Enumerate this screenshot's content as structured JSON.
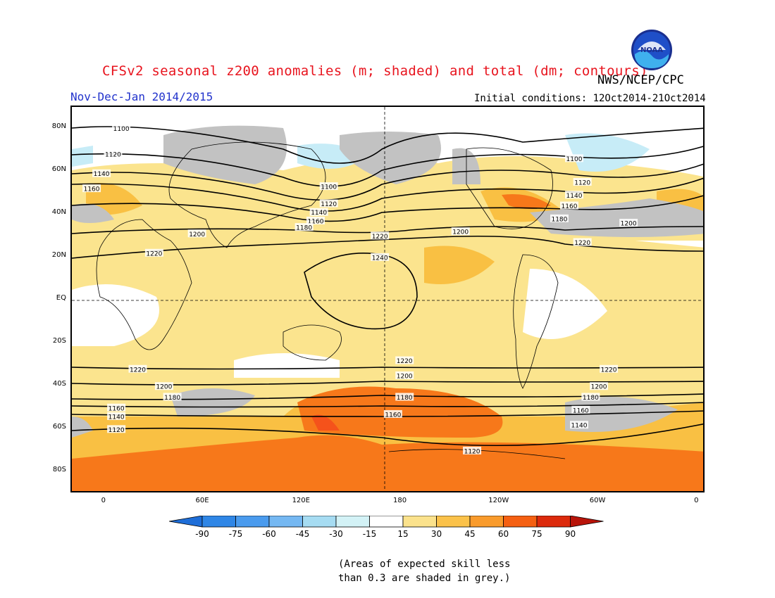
{
  "header": {
    "title": "CFSv2 seasonal z200 anomalies (m; shaded) and total (dm; contours)",
    "agency": "NWS/NCEP/CPC",
    "season": "Nov-Dec-Jan 2014/2015",
    "initial_conditions": "Initial conditions: 12Oct2014-21Oct2014",
    "logo_text": "NOAA"
  },
  "map": {
    "lat_labels": [
      "80N",
      "60N",
      "40N",
      "20N",
      "EQ",
      "20S",
      "40S",
      "60S",
      "80S"
    ],
    "lon_labels": [
      "0",
      "60E",
      "120E",
      "180",
      "120W",
      "60W",
      "0"
    ],
    "lat_values": [
      80,
      60,
      40,
      20,
      0,
      -20,
      -40,
      -60,
      -80
    ],
    "lon_values": [
      0,
      60,
      120,
      180,
      240,
      300,
      360
    ],
    "lon_range": [
      -20,
      365
    ],
    "lat_range": [
      90,
      -90
    ],
    "contour_labels": [
      {
        "text": "1100",
        "lon": 10,
        "lat": 80
      },
      {
        "text": "1120",
        "lon": 5,
        "lat": 68
      },
      {
        "text": "1140",
        "lon": -2,
        "lat": 59
      },
      {
        "text": "1160",
        "lon": -8,
        "lat": 52
      },
      {
        "text": "1200",
        "lon": 56,
        "lat": 31
      },
      {
        "text": "1220",
        "lon": 30,
        "lat": 22
      },
      {
        "text": "1100",
        "lon": 136,
        "lat": 53
      },
      {
        "text": "1120",
        "lon": 136,
        "lat": 45
      },
      {
        "text": "1140",
        "lon": 130,
        "lat": 41
      },
      {
        "text": "1160",
        "lon": 128,
        "lat": 37
      },
      {
        "text": "1180",
        "lon": 121,
        "lat": 34
      },
      {
        "text": "1220",
        "lon": 167,
        "lat": 30
      },
      {
        "text": "1240",
        "lon": 167,
        "lat": 20
      },
      {
        "text": "1200",
        "lon": 216,
        "lat": 32
      },
      {
        "text": "1100",
        "lon": 285,
        "lat": 66
      },
      {
        "text": "1120",
        "lon": 290,
        "lat": 55
      },
      {
        "text": "1140",
        "lon": 285,
        "lat": 49
      },
      {
        "text": "1160",
        "lon": 282,
        "lat": 44
      },
      {
        "text": "1180",
        "lon": 276,
        "lat": 38
      },
      {
        "text": "1220",
        "lon": 290,
        "lat": 27
      },
      {
        "text": "1200",
        "lon": 318,
        "lat": 36
      },
      {
        "text": "1220",
        "lon": 182,
        "lat": -28
      },
      {
        "text": "1200",
        "lon": 182,
        "lat": -35
      },
      {
        "text": "1180",
        "lon": 182,
        "lat": -45
      },
      {
        "text": "1160",
        "lon": 175,
        "lat": -53
      },
      {
        "text": "1120",
        "lon": 223,
        "lat": -70
      },
      {
        "text": "1220",
        "lon": 20,
        "lat": -32
      },
      {
        "text": "1200",
        "lon": 36,
        "lat": -40
      },
      {
        "text": "1180",
        "lon": 41,
        "lat": -45
      },
      {
        "text": "1160",
        "lon": 7,
        "lat": -50
      },
      {
        "text": "1140",
        "lon": 7,
        "lat": -54
      },
      {
        "text": "1120",
        "lon": 7,
        "lat": -60
      },
      {
        "text": "1220",
        "lon": 306,
        "lat": -32
      },
      {
        "text": "1200",
        "lon": 300,
        "lat": -40
      },
      {
        "text": "1180",
        "lon": 295,
        "lat": -45
      },
      {
        "text": "1160",
        "lon": 289,
        "lat": -51
      },
      {
        "text": "1140",
        "lon": 288,
        "lat": -58
      }
    ]
  },
  "colorbar": {
    "labels": [
      "-90",
      "-75",
      "-60",
      "-45",
      "-30",
      "-15",
      "15",
      "30",
      "45",
      "60",
      "75",
      "90"
    ],
    "colors": [
      "#1e6ed8",
      "#2f86e6",
      "#4a9bee",
      "#75b8f2",
      "#a6dcf2",
      "#d3f2f6",
      "#ffffff",
      "#fbe28c",
      "#fbc24a",
      "#f99b2c",
      "#f56012",
      "#dc2a0c",
      "#b8140a"
    ]
  },
  "shading": {
    "grey_color": "#c2c2c2",
    "light_blue": "#c7ecf7",
    "light_yellow": "#fbe48e",
    "yellow_orange": "#f9c043",
    "orange": "#f7781a",
    "red_orange": "#f5521b"
  },
  "footnote": {
    "line1": "(Areas of expected skill less",
    "line2": "than 0.3 are shaded in grey.)"
  }
}
